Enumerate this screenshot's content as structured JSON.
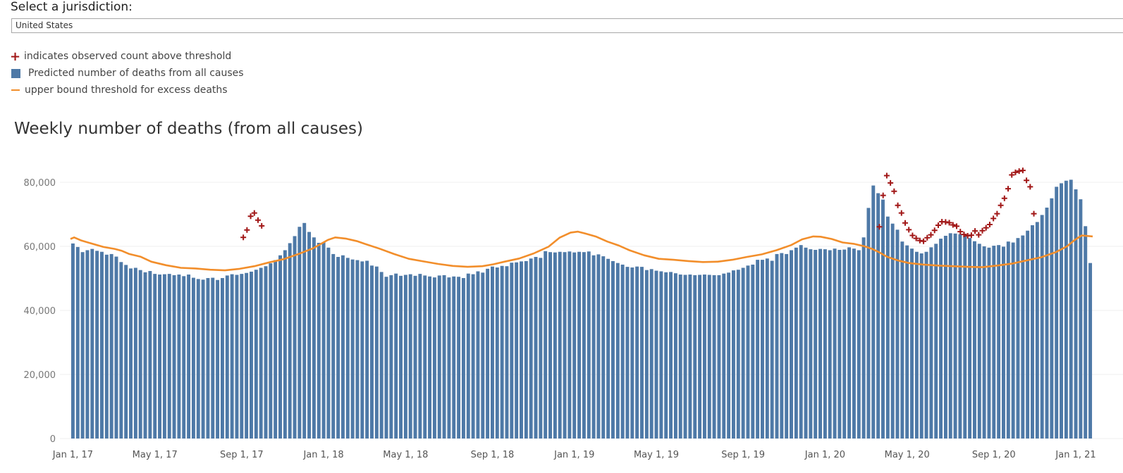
{
  "jurisdiction": {
    "label": "Select a jurisdiction:",
    "value": "United States"
  },
  "legend": [
    {
      "symbol": "plus-icon",
      "text": "indicates observed count above threshold"
    },
    {
      "symbol": "square-icon",
      "text": "Predicted number of deaths from all causes"
    },
    {
      "symbol": "line-icon",
      "text": "upper bound threshold for excess deaths"
    }
  ],
  "colors": {
    "bars": "#4e79a7",
    "threshold": "#f28e2b",
    "marker": "#a11616"
  },
  "chart_data": {
    "type": "bar",
    "title": "Weekly number of deaths (from all causes)",
    "ylim": [
      0,
      85000
    ],
    "yticks": [
      0,
      20000,
      40000,
      60000,
      80000
    ],
    "ytick_labels": [
      "0",
      "20,000",
      "40,000",
      "60,000",
      "80,000"
    ],
    "xtick_labels": [
      "Jan 1, 17",
      "May 1, 17",
      "Sep 1, 17",
      "Jan 1, 18",
      "May 1, 18",
      "Sep 1, 18",
      "Jan 1, 19",
      "May 1, 19",
      "Sep 1, 19",
      "Jan 1, 20",
      "May 1, 20",
      "Sep 1, 20",
      "Jan 1, 21"
    ],
    "xtick_week_index": [
      0,
      17,
      35,
      52,
      69,
      87,
      104,
      121,
      139,
      156,
      173,
      191,
      208
    ],
    "series": [
      {
        "name": "Predicted number of deaths from all causes",
        "type": "bar",
        "values": [
          60900,
          59800,
          58200,
          58800,
          59200,
          58600,
          58300,
          57400,
          57600,
          56800,
          55100,
          54200,
          53100,
          53300,
          52600,
          51900,
          52300,
          51400,
          51200,
          51300,
          51400,
          51000,
          51200,
          50700,
          51200,
          50200,
          49800,
          49600,
          50100,
          50200,
          49500,
          50100,
          50900,
          51300,
          51100,
          51400,
          51700,
          52100,
          52700,
          53300,
          53800,
          54700,
          55700,
          57200,
          58800,
          61000,
          63200,
          66100,
          67300,
          64500,
          62800,
          61100,
          61300,
          59600,
          57600,
          56700,
          57200,
          56400,
          55900,
          55700,
          55300,
          55500,
          54000,
          53700,
          52000,
          50500,
          51000,
          51500,
          50800,
          51100,
          51300,
          50800,
          51400,
          50900,
          50600,
          50300,
          50900,
          51000,
          50300,
          50600,
          50500,
          50100,
          51500,
          51300,
          52200,
          51800,
          53000,
          53700,
          53400,
          53900,
          53800,
          54900,
          55000,
          55300,
          55400,
          56200,
          56700,
          56400,
          58500,
          58200,
          58100,
          58300,
          58200,
          58400,
          58100,
          58300,
          58200,
          58400,
          57200,
          57500,
          56900,
          56100,
          55400,
          54800,
          54300,
          53600,
          53400,
          53700,
          53600,
          52600,
          52900,
          52400,
          52200,
          51900,
          52000,
          51600,
          51200,
          51100,
          51200,
          51000,
          51100,
          51200,
          51100,
          51000,
          51000,
          51500,
          51800,
          52500,
          52700,
          53300,
          54000,
          54300,
          55800,
          55800,
          56200,
          55500,
          57600,
          57900,
          57600,
          58800,
          59600,
          60400,
          59600,
          59100,
          58900,
          59200,
          59100,
          58800,
          59300,
          58900,
          59000,
          59700,
          59300,
          58800,
          62800,
          72000,
          79000,
          76600,
          74600,
          69300,
          67100,
          65200,
          61500,
          60300,
          59300,
          58300,
          57800,
          58300,
          59700,
          60800,
          62400,
          63300,
          64100,
          64000,
          63800,
          63300,
          62600,
          61600,
          60800,
          60000,
          59600,
          60200,
          60400,
          59900,
          61500,
          61200,
          62600,
          63400,
          64900,
          66600,
          67600,
          69800,
          72100,
          75000,
          78600,
          79700,
          80500,
          80800,
          77800,
          74700,
          66300,
          54800
        ],
        "color": "#4e79a7"
      },
      {
        "name": "upper bound threshold for excess deaths",
        "type": "line",
        "points": [
          [
            0,
            62300
          ],
          [
            1,
            62800
          ],
          [
            3,
            61800
          ],
          [
            6,
            60800
          ],
          [
            9,
            59800
          ],
          [
            12,
            59200
          ],
          [
            14,
            58600
          ],
          [
            16,
            57600
          ],
          [
            19,
            56800
          ],
          [
            22,
            55200
          ],
          [
            26,
            54100
          ],
          [
            30,
            53300
          ],
          [
            34,
            53100
          ],
          [
            38,
            52700
          ],
          [
            42,
            52500
          ],
          [
            46,
            53000
          ],
          [
            50,
            53800
          ],
          [
            54,
            55000
          ],
          [
            58,
            56000
          ],
          [
            62,
            57600
          ],
          [
            66,
            59400
          ],
          [
            70,
            62000
          ],
          [
            72,
            62800
          ],
          [
            75,
            62400
          ],
          [
            78,
            61600
          ],
          [
            80,
            60800
          ],
          [
            84,
            59300
          ],
          [
            88,
            57600
          ],
          [
            92,
            56100
          ],
          [
            96,
            55300
          ],
          [
            100,
            54500
          ],
          [
            104,
            53900
          ],
          [
            108,
            53600
          ],
          [
            112,
            53800
          ],
          [
            115,
            54400
          ],
          [
            118,
            55200
          ],
          [
            122,
            56200
          ],
          [
            126,
            57800
          ],
          [
            130,
            59900
          ],
          [
            133,
            62700
          ],
          [
            136,
            64300
          ],
          [
            138,
            64600
          ],
          [
            140,
            64000
          ],
          [
            143,
            63000
          ],
          [
            146,
            61500
          ],
          [
            149,
            60300
          ],
          [
            152,
            58800
          ],
          [
            156,
            57200
          ],
          [
            160,
            56100
          ],
          [
            164,
            55800
          ],
          [
            168,
            55400
          ],
          [
            172,
            55100
          ],
          [
            176,
            55200
          ],
          [
            180,
            55800
          ],
          [
            184,
            56700
          ],
          [
            188,
            57500
          ],
          [
            192,
            58800
          ],
          [
            196,
            60400
          ],
          [
            199,
            62200
          ],
          [
            202,
            63100
          ],
          [
            204,
            63000
          ],
          [
            207,
            62300
          ],
          [
            210,
            61200
          ],
          [
            213,
            60800
          ],
          [
            216,
            60000
          ],
          [
            218,
            59200
          ],
          [
            220,
            58100
          ],
          [
            222,
            56800
          ],
          [
            225,
            55600
          ],
          [
            228,
            54800
          ],
          [
            232,
            54300
          ],
          [
            236,
            54000
          ],
          [
            240,
            53800
          ],
          [
            244,
            53600
          ],
          [
            248,
            53500
          ],
          [
            252,
            54000
          ],
          [
            256,
            54600
          ],
          [
            260,
            55600
          ],
          [
            264,
            56600
          ],
          [
            268,
            58200
          ],
          [
            271,
            60000
          ],
          [
            273,
            61900
          ],
          [
            275,
            63400
          ],
          [
            278,
            63100
          ]
        ],
        "color": "#f28e2b"
      },
      {
        "name": "indicates observed count above threshold",
        "type": "scatter",
        "points": [
          [
            47,
            62800
          ],
          [
            48,
            65100
          ],
          [
            49,
            69400
          ],
          [
            50,
            70400
          ],
          [
            51,
            68200
          ],
          [
            52,
            66400
          ],
          [
            220,
            66100
          ],
          [
            221,
            75900
          ],
          [
            222,
            82100
          ],
          [
            223,
            79800
          ],
          [
            224,
            77200
          ],
          [
            225,
            72800
          ],
          [
            226,
            70400
          ],
          [
            227,
            67300
          ],
          [
            228,
            65200
          ],
          [
            229,
            63400
          ],
          [
            230,
            62500
          ],
          [
            231,
            61800
          ],
          [
            232,
            61600
          ],
          [
            233,
            62700
          ],
          [
            234,
            63600
          ],
          [
            235,
            65000
          ],
          [
            236,
            66600
          ],
          [
            237,
            67700
          ],
          [
            238,
            67600
          ],
          [
            239,
            67400
          ],
          [
            240,
            66700
          ],
          [
            241,
            66300
          ],
          [
            242,
            64600
          ],
          [
            243,
            63700
          ],
          [
            244,
            63300
          ],
          [
            245,
            63500
          ],
          [
            246,
            64800
          ],
          [
            247,
            63600
          ],
          [
            248,
            64900
          ],
          [
            249,
            65800
          ],
          [
            250,
            66800
          ],
          [
            251,
            68700
          ],
          [
            252,
            70200
          ],
          [
            253,
            72800
          ],
          [
            254,
            75000
          ],
          [
            255,
            78000
          ],
          [
            256,
            82300
          ],
          [
            257,
            83100
          ],
          [
            258,
            83500
          ],
          [
            259,
            83700
          ],
          [
            260,
            80600
          ],
          [
            261,
            78600
          ],
          [
            262,
            70200
          ]
        ],
        "color": "#a11616"
      }
    ]
  }
}
